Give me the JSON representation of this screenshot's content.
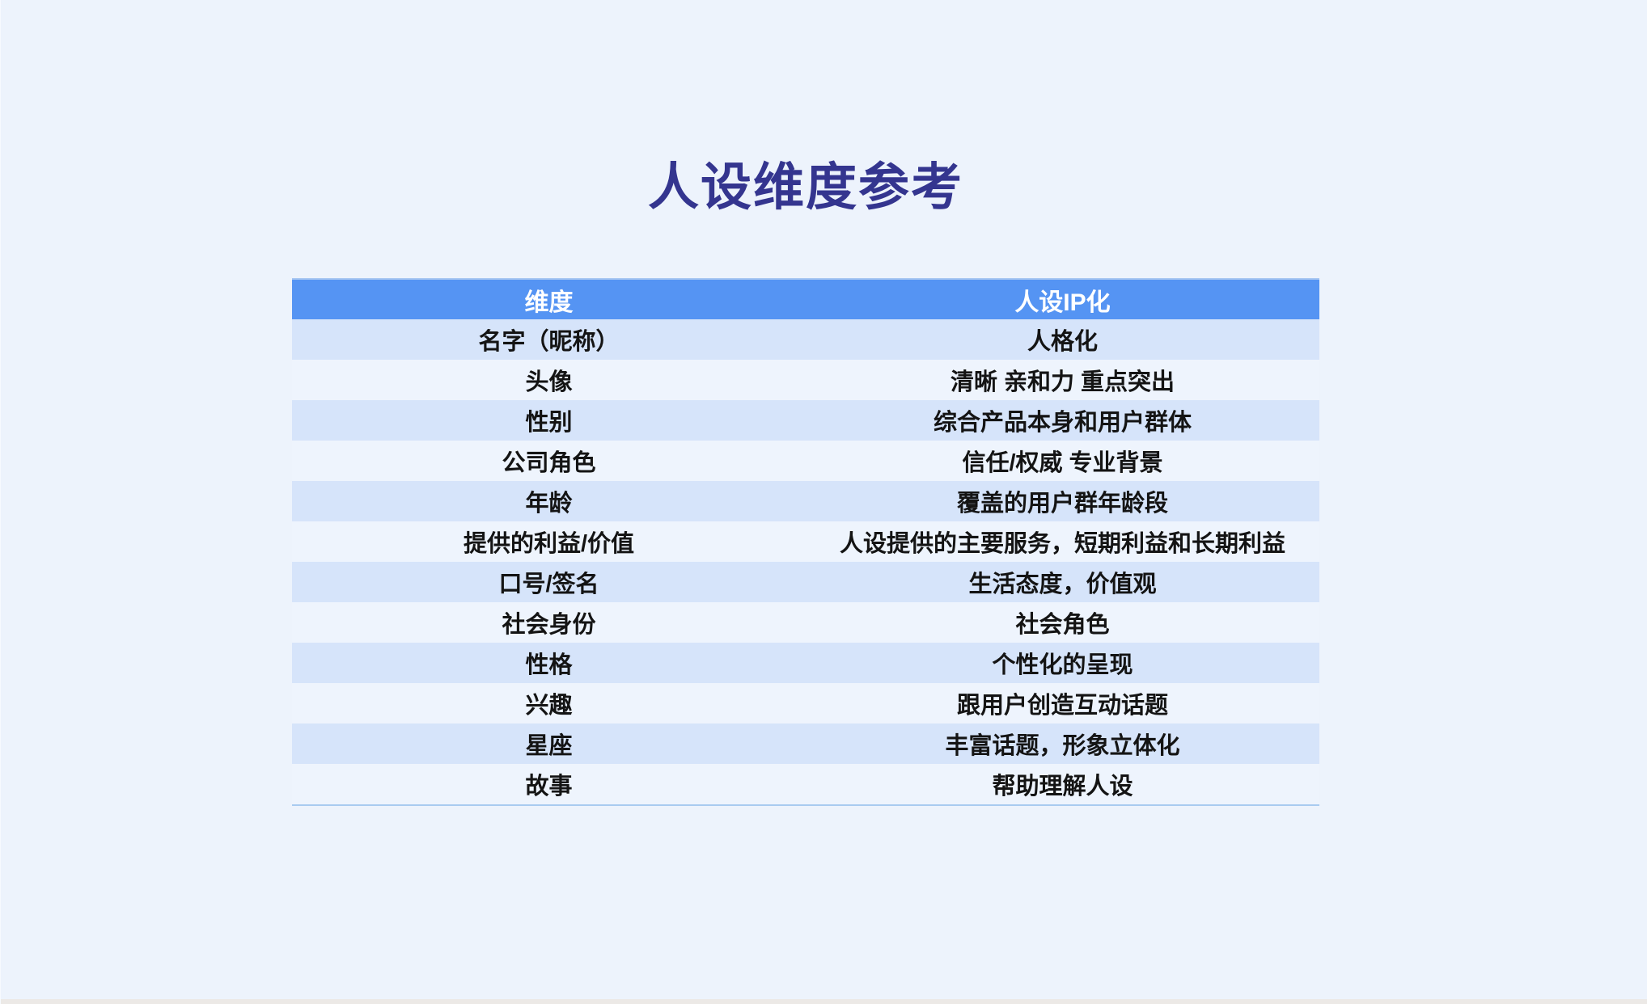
{
  "page": {
    "title": "人设维度参考",
    "title_color": "#34358F",
    "background_color": "#EDF3FC",
    "bottom_strip_color": "#ECE9E6"
  },
  "table": {
    "header": {
      "dimension_label": "维度",
      "value_label": "人设IP化"
    },
    "colors": {
      "header_bg": "#5594F3",
      "header_text": "#FFFFFF",
      "row_alt_bg": "#D6E4FA",
      "row_bg": "#EEF4FD",
      "bottom_rule": "#A9CBF0",
      "body_text": "#141414"
    },
    "rows": [
      {
        "dimension": "名字（昵称）",
        "value": "人格化"
      },
      {
        "dimension": "头像",
        "value": "清晰 亲和力 重点突出"
      },
      {
        "dimension": "性别",
        "value": "综合产品本身和用户群体"
      },
      {
        "dimension": "公司角色",
        "value": "信任/权威 专业背景"
      },
      {
        "dimension": "年龄",
        "value": "覆盖的用户群年龄段"
      },
      {
        "dimension": "提供的利益/价值",
        "value": "人设提供的主要服务，短期利益和长期利益"
      },
      {
        "dimension": "口号/签名",
        "value": "生活态度，价值观"
      },
      {
        "dimension": "社会身份",
        "value": "社会角色"
      },
      {
        "dimension": "性格",
        "value": "个性化的呈现"
      },
      {
        "dimension": "兴趣",
        "value": "跟用户创造互动话题"
      },
      {
        "dimension": "星座",
        "value": "丰富话题，形象立体化"
      },
      {
        "dimension": "故事",
        "value": "帮助理解人设"
      }
    ]
  }
}
